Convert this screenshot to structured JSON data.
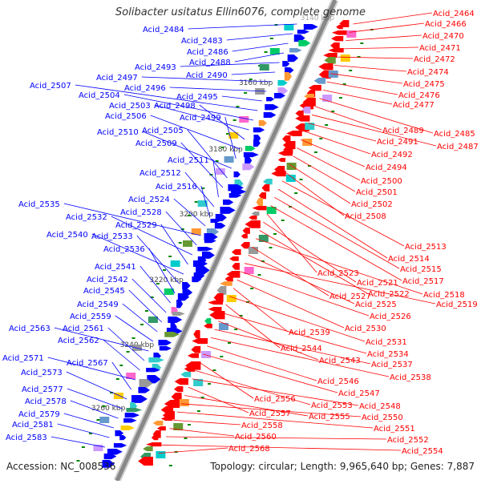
{
  "title": "Solibacter usitatus Ellin6076, complete genome",
  "footer": {
    "accession": "Accession: NC_008536",
    "summary": "Topology: circular; Length: 9,965,640 bp; Genes: 7,887"
  },
  "colors": {
    "forward_strand": "#0000ff",
    "reverse_strand": "#ff0000",
    "backbone": "#888888",
    "tick": "#008800",
    "label_text": "#333333"
  },
  "ticks": [
    "3140 kbp",
    "3160 kbp",
    "3180 kbp",
    "3200 kbp",
    "3220 kbp",
    "3240 kbp",
    "3260 kbp"
  ],
  "forward_genes": [
    "Acid_2484",
    "Acid_2483",
    "Acid_2486",
    "Acid_2488",
    "Acid_2493",
    "Acid_2490",
    "Acid_2497",
    "Acid_2496",
    "Acid_2495",
    "Acid_2507",
    "Acid_2504",
    "Acid_2503",
    "Acid_2498",
    "Acid_2506",
    "Acid_2499",
    "Acid_2510",
    "Acid_2505",
    "Acid_2509",
    "Acid_2511",
    "Acid_2512",
    "Acid_2516",
    "Acid_2524",
    "Acid_2535",
    "Acid_2528",
    "Acid_2532",
    "Acid_2529",
    "Acid_2540",
    "Acid_2533",
    "Acid_2536",
    "Acid_2541",
    "Acid_2542",
    "Acid_2545",
    "Acid_2549",
    "Acid_2559",
    "Acid_2563",
    "Acid_2561",
    "Acid_2562",
    "Acid_2571",
    "Acid_2567",
    "Acid_2573",
    "Acid_2577",
    "Acid_2578",
    "Acid_2579",
    "Acid_2581",
    "Acid_2583"
  ],
  "reverse_genes": [
    "Acid_2464",
    "Acid_2466",
    "Acid_2470",
    "Acid_2471",
    "Acid_2472",
    "Acid_2474",
    "Acid_2475",
    "Acid_2476",
    "Acid_2477",
    "Acid_2485",
    "Acid_2489",
    "Acid_2487",
    "Acid_2491",
    "Acid_2492",
    "Acid_2494",
    "Acid_2500",
    "Acid_2501",
    "Acid_2502",
    "Acid_2508",
    "Acid_2513",
    "Acid_2514",
    "Acid_2515",
    "Acid_2517",
    "Acid_2523",
    "Acid_2521",
    "Acid_2522",
    "Acid_2518",
    "Acid_2527",
    "Acid_2525",
    "Acid_2519",
    "Acid_2526",
    "Acid_2530",
    "Acid_2539",
    "Acid_2531",
    "Acid_2544",
    "Acid_2534",
    "Acid_2543",
    "Acid_2537",
    "Acid_2538",
    "Acid_2546",
    "Acid_2547",
    "Acid_2556",
    "Acid_2553",
    "Acid_2548",
    "Acid_2557",
    "Acid_2555",
    "Acid_2550",
    "Acid_2551",
    "Acid_2558",
    "Acid_2560",
    "Acid_2552",
    "Acid_2554",
    "Acid_2568"
  ]
}
